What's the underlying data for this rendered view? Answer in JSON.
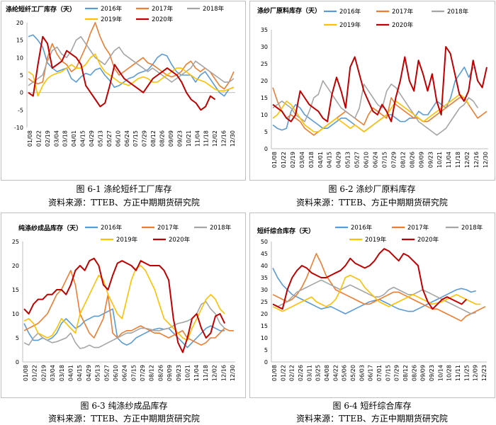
{
  "source": "资料来源：TTEB、方正中期期货研究院",
  "chart_data": [
    {
      "type": "line",
      "title": "涤纶短纤工厂库存（天）",
      "caption": "图 6-1  涤纶短纤工厂库存",
      "ylim": [
        -10,
        20
      ],
      "yticks": [
        "-10",
        "-5",
        "0",
        "5",
        "10",
        "15",
        "20"
      ],
      "xticks": [
        "01/08",
        "01/22",
        "02/19",
        "03/04",
        "03/18",
        "04/01",
        "04/15",
        "04/29",
        "05/13",
        "05/27",
        "06/10",
        "06/24",
        "07/15",
        "07/29",
        "08/12",
        "08/26",
        "09/09",
        "09/23",
        "10/21",
        "11/04",
        "11/18",
        "12/02",
        "12/16",
        "12/30"
      ],
      "series": [
        {
          "name": "2016年",
          "color": "#5b9bd5",
          "values": [
            16,
            16.5,
            15,
            13,
            8.5,
            7,
            6,
            6.5,
            7,
            4,
            3,
            4.5,
            5.5,
            5,
            6.5,
            7,
            5,
            3.5,
            1.5,
            2,
            3,
            4,
            4.5,
            5.5,
            6,
            6.5,
            8,
            10,
            11,
            10.5,
            8,
            6,
            5,
            5,
            5,
            3,
            5,
            6,
            4,
            2,
            0,
            -1,
            1,
            1.5
          ]
        },
        {
          "name": "2017年",
          "color": "#ed7d31",
          "values": [
            4,
            3,
            2.5,
            3,
            10,
            14,
            11,
            9,
            8,
            6,
            7,
            10,
            13,
            17,
            20,
            16,
            13,
            11,
            7,
            5,
            6,
            7,
            8,
            9,
            10,
            8.5,
            8,
            7,
            6,
            5,
            4.5,
            5,
            6,
            8,
            9,
            7,
            6,
            7,
            6,
            4,
            2,
            1,
            3,
            6
          ]
        },
        {
          "name": "2018年",
          "color": "#a5a5a5",
          "values": [
            2,
            3,
            4,
            5,
            9,
            12,
            13,
            11,
            10,
            12,
            15,
            16,
            14,
            12,
            10,
            9,
            8,
            10,
            12,
            13,
            11,
            10,
            9,
            8,
            7,
            6,
            7,
            6,
            5,
            4,
            3,
            4,
            5,
            6,
            7,
            9,
            8,
            7,
            6,
            5,
            4,
            3,
            3,
            4
          ]
        },
        {
          "name": "2019年",
          "color": "#ffc000",
          "values": [
            6,
            5,
            -1,
            2,
            4,
            5,
            5.5,
            6,
            7,
            8,
            7,
            7,
            8,
            10,
            11,
            8,
            6,
            5,
            4,
            3,
            2.5,
            2,
            3,
            4,
            4.5,
            4,
            3,
            3,
            4,
            5,
            6,
            7,
            7,
            6,
            5,
            4,
            3.5,
            3,
            2,
            1,
            0.5,
            0.5,
            1,
            1.5
          ]
        },
        {
          "name": "2020年",
          "color": "#c00000",
          "values": [
            0,
            -1,
            8,
            16,
            14,
            7,
            8,
            9,
            12,
            11,
            10,
            8,
            2,
            0,
            -2,
            -4,
            -3,
            2,
            8,
            6,
            4,
            3,
            2,
            1,
            0,
            2,
            4,
            5,
            6,
            7,
            6,
            5,
            3,
            0,
            -2,
            -3,
            -5,
            -4,
            -1,
            -2
          ]
        }
      ]
    },
    {
      "type": "line",
      "title": "涤纱厂原料库存（天）",
      "caption": "图 6-2  涤纱厂原料库存",
      "ylim": [
        0,
        35
      ],
      "yticks": [
        "0",
        "5",
        "10",
        "15",
        "20",
        "25",
        "30",
        "35"
      ],
      "xticks": [
        "01/08",
        "01/22",
        "02/19",
        "03/04",
        "03/18",
        "04/01",
        "04/15",
        "04/29",
        "05/13",
        "05/27",
        "06/10",
        "06/24",
        "07/15",
        "07/29",
        "08/12",
        "08/26",
        "09/09",
        "09/23",
        "10/21",
        "11/04",
        "11/18",
        "12/02",
        "12/16",
        "12/30"
      ],
      "series": [
        {
          "name": "2016年",
          "color": "#5b9bd5",
          "values": [
            7,
            6,
            5.5,
            6,
            11,
            13,
            12,
            10,
            9,
            8,
            7,
            6,
            6,
            7,
            8,
            9,
            9,
            8,
            7,
            6,
            5,
            6,
            7,
            8,
            9,
            10,
            10,
            9,
            8,
            8,
            9,
            9,
            11,
            10,
            10,
            12,
            14,
            13,
            12,
            15,
            20,
            22,
            24,
            21,
            24
          ]
        },
        {
          "name": "2017年",
          "color": "#ed7d31",
          "values": [
            18,
            14,
            11,
            9,
            10,
            9,
            8,
            6,
            5,
            4,
            5,
            6,
            7,
            8,
            9,
            10,
            11,
            10,
            9,
            8,
            7,
            10,
            12,
            11,
            10,
            9,
            15,
            13,
            12,
            11,
            10,
            9,
            9,
            8,
            8,
            9,
            10,
            11,
            12,
            13,
            14,
            15,
            15,
            13,
            11,
            9,
            10,
            11
          ]
        },
        {
          "name": "2018年",
          "color": "#a5a5a5",
          "values": [
            12,
            13,
            14,
            13,
            12,
            10,
            9,
            8,
            11,
            15,
            16,
            20,
            18,
            16,
            14,
            12,
            11,
            10,
            9,
            12,
            19,
            17,
            15,
            13,
            12,
            17,
            19,
            18,
            16,
            14,
            12,
            10,
            8,
            7,
            6,
            5,
            4,
            5,
            6,
            8,
            10,
            12,
            13,
            15,
            14,
            12
          ]
        },
        {
          "name": "2019年",
          "color": "#ffc000",
          "values": [
            9,
            10,
            12,
            14,
            13,
            11,
            9,
            7,
            6,
            5,
            5,
            6,
            7,
            8,
            9,
            8,
            7,
            6,
            7,
            6,
            5,
            6,
            7,
            8,
            9,
            10,
            12,
            14,
            13,
            12,
            11,
            10,
            9,
            8,
            9,
            10,
            11,
            12,
            13,
            14,
            15,
            16,
            15,
            13
          ]
        },
        {
          "name": "2020年",
          "color": "#c00000",
          "values": [
            13,
            12,
            11,
            9,
            8,
            10,
            17,
            15,
            13,
            12,
            11,
            9,
            8,
            16,
            21,
            17,
            12,
            24,
            27,
            22,
            17,
            14,
            11,
            10,
            13,
            11,
            8,
            15,
            20,
            27,
            20,
            17,
            26,
            22,
            17,
            22,
            14,
            10,
            30,
            28,
            22,
            16,
            14,
            17,
            26,
            20,
            18,
            24
          ]
        }
      ]
    },
    {
      "type": "line",
      "title": "纯涤纱成品库存（天）",
      "caption": "图 6-3  纯涤纱成品库存",
      "ylim": [
        0,
        25
      ],
      "yticks": [
        "0",
        "5",
        "10",
        "15",
        "20",
        "25"
      ],
      "xticks": [
        "01/08",
        "01/22",
        "02/19",
        "03/04",
        "03/18",
        "04/01",
        "04/15",
        "04/29",
        "05/13",
        "05/27",
        "06/10",
        "06/24",
        "07/15",
        "07/29",
        "08/12",
        "08/26",
        "09/09",
        "09/23",
        "10/21",
        "11/04",
        "11/18",
        "12/02",
        "12/16",
        "12/30"
      ],
      "series": [
        {
          "name": "2016年",
          "color": "#5b9bd5",
          "values": [
            8,
            6,
            4.5,
            4.5,
            5,
            4.5,
            5,
            6,
            8,
            9,
            8,
            7,
            7.5,
            8.5,
            9,
            9.5,
            9.5,
            10,
            10.5,
            11,
            5,
            4,
            3.5,
            4,
            5,
            5.5,
            6,
            6.5,
            6.8,
            7,
            6.8,
            7,
            6,
            5,
            4,
            3,
            4,
            5,
            6,
            7,
            7.5,
            7,
            6.5,
            6.5
          ]
        },
        {
          "name": "2017年",
          "color": "#ed7d31",
          "values": [
            6.5,
            7,
            7.5,
            8,
            9,
            10,
            12,
            14,
            15,
            17,
            19,
            16,
            10,
            8,
            6,
            5,
            7,
            9,
            14,
            6,
            5,
            6,
            6.5,
            6.5,
            7,
            7.5,
            7,
            6.5,
            6,
            6,
            5.5,
            5,
            5.5,
            6,
            6.5,
            5,
            4.5,
            4,
            3.5,
            4,
            5,
            5,
            6,
            7,
            6.5,
            6.5
          ]
        },
        {
          "name": "2018年",
          "color": "#a5a5a5",
          "values": [
            4,
            3.5,
            5,
            6,
            5,
            4.5,
            4,
            4.2,
            4.6,
            5,
            6,
            4,
            2.8,
            3,
            3.5,
            3,
            3,
            3.5,
            4,
            4.5,
            5,
            5.5,
            6,
            6,
            6.5,
            7,
            7,
            6.8,
            6.5,
            6.5,
            6.8,
            7,
            7.5,
            8,
            8.2,
            8.5,
            9,
            10,
            12,
            12.5,
            11,
            10,
            8,
            7
          ]
        },
        {
          "name": "2019年",
          "color": "#ffc000",
          "values": [
            8.5,
            9,
            8,
            6,
            5.5,
            5,
            5.5,
            7,
            9,
            8,
            7,
            6,
            10,
            12,
            14,
            16,
            18,
            17,
            14,
            12,
            10,
            9,
            13,
            17,
            19.5,
            20,
            19,
            17,
            15,
            12,
            9,
            8,
            7,
            6,
            5,
            4.5,
            7,
            9,
            11,
            13,
            14,
            13,
            11,
            10
          ]
        },
        {
          "name": "2020年",
          "color": "#c00000",
          "values": [
            11,
            10,
            12,
            13,
            13,
            14,
            14,
            15,
            15,
            14,
            16,
            19,
            20,
            19,
            21,
            21.5,
            20,
            16,
            15,
            18,
            20.5,
            21,
            20.5,
            20,
            19,
            21,
            20.5,
            20,
            20,
            20,
            19,
            17,
            9,
            4,
            2,
            5,
            9,
            10,
            7,
            5,
            6,
            9.5,
            10,
            8
          ]
        }
      ]
    },
    {
      "type": "line",
      "title": "短纤综合库存（天）",
      "caption": "图 6-4  短纤综合库存",
      "ylim": [
        0,
        50
      ],
      "yticks": [
        "0",
        "5",
        "10",
        "15",
        "20",
        "25",
        "30",
        "35",
        "40",
        "45",
        "50"
      ],
      "xticks": [
        "01/08",
        "01/22",
        "02/12",
        "02/26",
        "03/11",
        "03/25",
        "04/08",
        "04/22",
        "05/06",
        "05/20",
        "06/03",
        "06/17",
        "07/01",
        "07/15",
        "07/29",
        "08/12",
        "08/26",
        "09/09",
        "09/23",
        "10/14",
        "10/28",
        "11/11",
        "11/25",
        "12/09",
        "12/23"
      ],
      "series": [
        {
          "name": "2016年",
          "color": "#5b9bd5",
          "values": [
            39,
            35,
            32,
            30,
            28,
            27,
            26,
            25,
            24,
            23,
            22,
            22.5,
            23,
            22,
            21,
            20,
            21,
            22,
            23,
            24,
            25,
            25.5,
            26,
            25,
            24,
            23,
            22,
            21.5,
            21,
            21,
            22,
            23,
            24,
            25,
            26,
            27,
            28,
            29,
            30,
            30.5,
            30,
            29,
            29.5
          ]
        },
        {
          "name": "2017年",
          "color": "#ed7d31",
          "values": [
            28,
            27,
            26,
            25,
            26,
            28,
            31,
            35,
            40,
            45,
            41,
            36,
            33,
            30,
            29,
            28,
            27,
            26,
            25,
            24,
            24,
            25,
            26,
            27,
            28,
            29,
            29,
            28,
            27,
            26,
            25,
            24,
            23,
            22,
            22,
            21,
            20,
            19,
            18,
            17,
            19,
            20,
            21,
            22,
            23
          ]
        },
        {
          "name": "2018年",
          "color": "#a5a5a5",
          "values": [
            24,
            23,
            24,
            25,
            27,
            29,
            30,
            31,
            32,
            33,
            34,
            33,
            32,
            31,
            30,
            31,
            32,
            31,
            30,
            29,
            28,
            27,
            27,
            28,
            30,
            31,
            30,
            29,
            28,
            28,
            29,
            30,
            29,
            28,
            27,
            26,
            25,
            24,
            23,
            22,
            21,
            20,
            20.5
          ]
        },
        {
          "name": "2019年",
          "color": "#ffc000",
          "values": [
            23,
            22,
            21,
            22,
            23,
            24,
            25,
            26,
            27,
            25,
            24,
            23,
            24,
            26,
            30,
            35,
            36,
            35,
            34,
            31,
            29,
            27,
            25,
            24,
            23,
            24,
            25,
            26,
            27,
            28,
            27,
            26,
            25,
            24,
            24.5,
            25,
            26,
            27,
            28,
            27,
            26,
            25,
            24,
            24
          ]
        },
        {
          "name": "2020年",
          "color": "#c00000",
          "values": [
            24,
            23,
            22,
            30,
            35,
            38,
            40,
            39,
            37,
            36,
            35,
            35,
            36,
            37,
            38,
            40,
            43,
            41,
            40,
            39,
            40,
            42,
            45,
            47,
            46,
            44,
            42,
            45,
            44,
            42,
            40,
            30,
            25,
            22,
            24,
            26,
            27,
            26,
            25,
            24,
            26
          ]
        }
      ]
    }
  ]
}
